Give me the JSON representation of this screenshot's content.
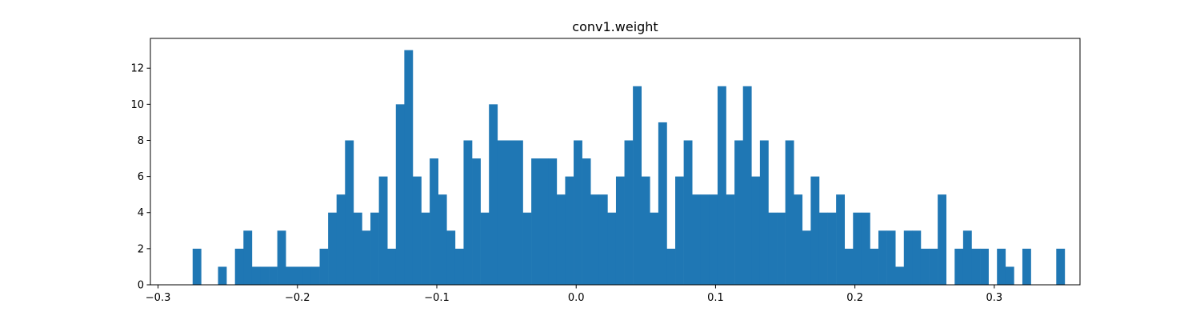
{
  "chart_data": {
    "type": "bar",
    "title": "conv1.weight",
    "xlabel": "",
    "ylabel": "",
    "xlim": [
      -0.3055,
      0.3615
    ],
    "ylim": [
      0,
      13.65
    ],
    "xticks": [
      -0.3,
      -0.2,
      -0.1,
      0.0,
      0.1,
      0.2,
      0.3
    ],
    "xtick_labels": [
      "−0.3",
      "−0.2",
      "−0.1",
      "0.0",
      "0.1",
      "0.2",
      "0.3"
    ],
    "yticks": [
      0,
      2,
      4,
      6,
      8,
      10,
      12
    ],
    "ytick_labels": [
      "0",
      "2",
      "4",
      "6",
      "8",
      "10",
      "12"
    ],
    "grid": false,
    "bar_color": "#1f77b4",
    "bin_start": -0.2752,
    "bin_width": 0.006075,
    "counts": [
      2,
      0,
      0,
      1,
      0,
      2,
      3,
      1,
      1,
      1,
      3,
      1,
      1,
      1,
      1,
      2,
      4,
      5,
      8,
      4,
      3,
      4,
      6,
      2,
      10,
      13,
      6,
      4,
      7,
      5,
      3,
      2,
      8,
      7,
      4,
      10,
      8,
      8,
      8,
      4,
      7,
      7,
      7,
      5,
      6,
      8,
      7,
      5,
      5,
      4,
      6,
      8,
      11,
      6,
      4,
      9,
      2,
      6,
      8,
      5,
      5,
      5,
      11,
      5,
      8,
      11,
      6,
      8,
      4,
      4,
      8,
      5,
      3,
      6,
      4,
      4,
      5,
      2,
      4,
      4,
      2,
      3,
      3,
      1,
      3,
      3,
      2,
      2,
      5,
      0,
      2,
      3,
      2,
      2,
      0,
      2,
      1,
      0,
      2,
      0,
      0,
      0,
      2
    ]
  }
}
